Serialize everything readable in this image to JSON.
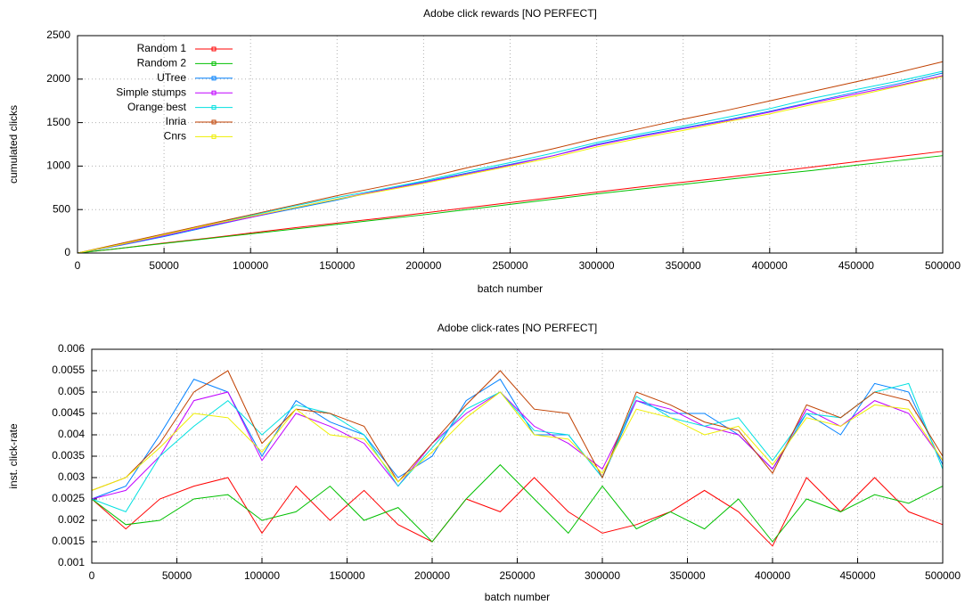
{
  "chart_data": [
    {
      "type": "line",
      "title": "Adobe click rewards [NO PERFECT]",
      "xlabel": "batch number",
      "ylabel": "cumulated clicks",
      "x": [
        0,
        25000,
        50000,
        75000,
        100000,
        125000,
        150000,
        175000,
        200000,
        225000,
        250000,
        275000,
        300000,
        325000,
        350000,
        375000,
        400000,
        425000,
        450000,
        475000,
        500000
      ],
      "xlim": [
        0,
        500000
      ],
      "xticks": [
        0,
        50000,
        100000,
        150000,
        200000,
        250000,
        300000,
        350000,
        400000,
        450000,
        500000
      ],
      "ylim": [
        0,
        2500
      ],
      "yticks": [
        0,
        500,
        1000,
        1500,
        2000,
        2500
      ],
      "grid": true,
      "legend": "top-left",
      "series": [
        {
          "name": "Random 1",
          "color": "#ff0000",
          "values": [
            0,
            55,
            115,
            170,
            230,
            290,
            345,
            400,
            460,
            520,
            580,
            640,
            700,
            760,
            815,
            870,
            930,
            990,
            1050,
            1110,
            1170
          ]
        },
        {
          "name": "Random 2",
          "color": "#00c000",
          "values": [
            0,
            55,
            110,
            165,
            220,
            275,
            330,
            385,
            440,
            500,
            560,
            620,
            680,
            735,
            790,
            845,
            900,
            950,
            1010,
            1065,
            1120
          ]
        },
        {
          "name": "UTree",
          "color": "#0080ff",
          "values": [
            0,
            90,
            190,
            300,
            410,
            510,
            610,
            720,
            820,
            920,
            1020,
            1120,
            1250,
            1350,
            1440,
            1530,
            1630,
            1740,
            1850,
            1950,
            2070
          ]
        },
        {
          "name": "Simple stumps",
          "color": "#c000ff",
          "values": [
            0,
            95,
            200,
            310,
            410,
            520,
            620,
            720,
            810,
            910,
            1010,
            1120,
            1240,
            1340,
            1430,
            1520,
            1620,
            1730,
            1830,
            1930,
            2040
          ]
        },
        {
          "name": "Orange best",
          "color": "#00e0e0",
          "values": [
            0,
            100,
            210,
            320,
            430,
            540,
            640,
            730,
            830,
            940,
            1040,
            1150,
            1270,
            1370,
            1460,
            1560,
            1660,
            1780,
            1880,
            1980,
            2090
          ]
        },
        {
          "name": "Inria",
          "color": "#c04000",
          "values": [
            0,
            110,
            220,
            330,
            440,
            550,
            660,
            760,
            860,
            980,
            1090,
            1200,
            1320,
            1430,
            1540,
            1640,
            1750,
            1860,
            1970,
            2080,
            2200
          ]
        },
        {
          "name": "Cnrs",
          "color": "#eeee00",
          "values": [
            0,
            100,
            210,
            320,
            420,
            520,
            620,
            710,
            800,
            900,
            1000,
            1100,
            1220,
            1320,
            1410,
            1510,
            1600,
            1710,
            1810,
            1920,
            2030
          ]
        }
      ]
    },
    {
      "type": "line",
      "title": "Adobe click-rates [NO PERFECT]",
      "xlabel": "batch number",
      "ylabel": "inst. click-rate",
      "x": [
        0,
        20000,
        40000,
        60000,
        80000,
        100000,
        120000,
        140000,
        160000,
        180000,
        200000,
        220000,
        240000,
        260000,
        280000,
        300000,
        320000,
        340000,
        360000,
        380000,
        400000,
        420000,
        440000,
        460000,
        480000,
        500000
      ],
      "xlim": [
        0,
        500000
      ],
      "xticks": [
        0,
        50000,
        100000,
        150000,
        200000,
        250000,
        300000,
        350000,
        400000,
        450000,
        500000
      ],
      "ylim": [
        0.001,
        0.006
      ],
      "yticks": [
        0.001,
        0.0015,
        0.002,
        0.0025,
        0.003,
        0.0035,
        0.004,
        0.0045,
        0.005,
        0.0055,
        0.006
      ],
      "grid": true,
      "series": [
        {
          "color": "#ff0000",
          "values": [
            0.0025,
            0.0018,
            0.0025,
            0.0028,
            0.003,
            0.0017,
            0.0028,
            0.002,
            0.0027,
            0.0019,
            0.0015,
            0.0025,
            0.0022,
            0.003,
            0.0022,
            0.0017,
            0.0019,
            0.0022,
            0.0027,
            0.0022,
            0.0014,
            0.003,
            0.0022,
            0.003,
            0.0022,
            0.0019
          ]
        },
        {
          "color": "#00c000",
          "values": [
            0.0025,
            0.0019,
            0.002,
            0.0025,
            0.0026,
            0.002,
            0.0022,
            0.0028,
            0.002,
            0.0023,
            0.0015,
            0.0025,
            0.0033,
            0.0025,
            0.0017,
            0.0028,
            0.0018,
            0.0022,
            0.0018,
            0.0025,
            0.0015,
            0.0025,
            0.0022,
            0.0026,
            0.0024,
            0.0028
          ]
        },
        {
          "color": "#0080ff",
          "values": [
            0.0025,
            0.0028,
            0.004,
            0.0053,
            0.005,
            0.0035,
            0.0048,
            0.0043,
            0.004,
            0.003,
            0.0035,
            0.0048,
            0.0053,
            0.004,
            0.004,
            0.003,
            0.0048,
            0.0045,
            0.0045,
            0.004,
            0.0032,
            0.0045,
            0.004,
            0.0052,
            0.005,
            0.0033
          ]
        },
        {
          "color": "#c000ff",
          "values": [
            0.0025,
            0.0027,
            0.0035,
            0.0048,
            0.005,
            0.0034,
            0.0045,
            0.0042,
            0.0038,
            0.0028,
            0.0038,
            0.0045,
            0.005,
            0.0042,
            0.0038,
            0.0032,
            0.0048,
            0.0046,
            0.0042,
            0.004,
            0.0032,
            0.0046,
            0.0042,
            0.0048,
            0.0045,
            0.0034
          ]
        },
        {
          "color": "#00e0e0",
          "values": [
            0.0025,
            0.0022,
            0.0035,
            0.0042,
            0.0048,
            0.004,
            0.0047,
            0.0045,
            0.004,
            0.0028,
            0.0037,
            0.0046,
            0.005,
            0.0041,
            0.004,
            0.003,
            0.0049,
            0.0044,
            0.0042,
            0.0044,
            0.0034,
            0.0045,
            0.0044,
            0.005,
            0.0052,
            0.0032
          ]
        },
        {
          "color": "#c04000",
          "values": [
            0.0027,
            0.003,
            0.0038,
            0.005,
            0.0055,
            0.0038,
            0.0046,
            0.0045,
            0.0042,
            0.0029,
            0.0038,
            0.0047,
            0.0055,
            0.0046,
            0.0045,
            0.003,
            0.005,
            0.0047,
            0.0043,
            0.0041,
            0.0031,
            0.0047,
            0.0044,
            0.005,
            0.0048,
            0.0035
          ]
        },
        {
          "color": "#eeee00",
          "values": [
            0.0027,
            0.003,
            0.0037,
            0.0045,
            0.0044,
            0.0036,
            0.0046,
            0.004,
            0.0039,
            0.0029,
            0.0036,
            0.0044,
            0.005,
            0.004,
            0.0039,
            0.0031,
            0.0046,
            0.0044,
            0.004,
            0.0042,
            0.0033,
            0.0044,
            0.0042,
            0.0047,
            0.0046,
            0.0034
          ]
        }
      ]
    }
  ]
}
